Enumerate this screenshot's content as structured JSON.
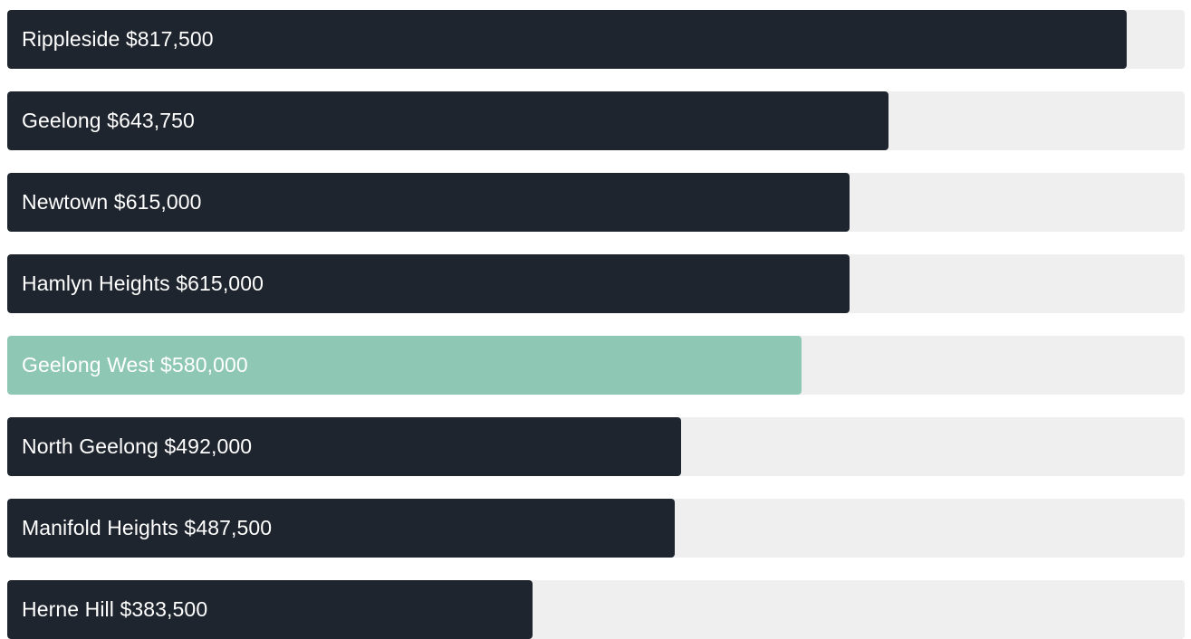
{
  "chart_data": {
    "type": "bar",
    "orientation": "horizontal",
    "title": "",
    "xlabel": "",
    "ylabel": "",
    "xlim": [
      0,
      860000
    ],
    "colors": {
      "default": "#1f252e",
      "highlight": "#8fc7b5",
      "track": "#efefef"
    },
    "items": [
      {
        "name": "Rippleside",
        "value": 817500,
        "display": "$817,500",
        "highlight": false
      },
      {
        "name": "Geelong",
        "value": 643750,
        "display": "$643,750",
        "highlight": false
      },
      {
        "name": "Newtown",
        "value": 615000,
        "display": "$615,000",
        "highlight": false
      },
      {
        "name": "Hamlyn Heights",
        "value": 615000,
        "display": "$615,000",
        "highlight": false
      },
      {
        "name": "Geelong West",
        "value": 580000,
        "display": "$580,000",
        "highlight": true
      },
      {
        "name": "North Geelong",
        "value": 492000,
        "display": "$492,000",
        "highlight": false
      },
      {
        "name": "Manifold Heights",
        "value": 487500,
        "display": "$487,500",
        "highlight": false
      },
      {
        "name": "Herne Hill",
        "value": 383500,
        "display": "$383,500",
        "highlight": false
      }
    ]
  }
}
